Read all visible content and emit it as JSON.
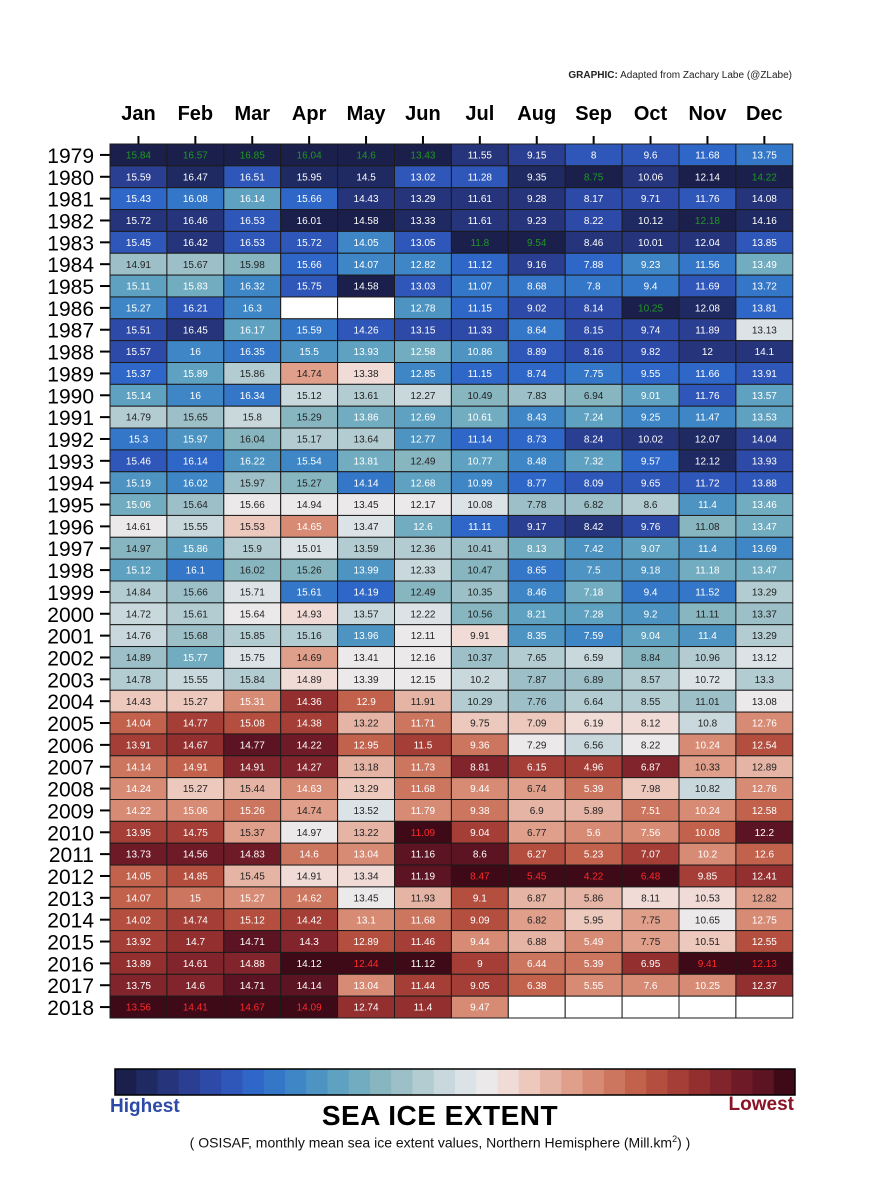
{
  "credit": {
    "bold": "GRAPHIC:",
    "text": "Adapted from Zachary Labe (@ZLabe)"
  },
  "chart_data": {
    "type": "heatmap",
    "title": "SEA ICE EXTENT",
    "subtitle": "( OSISAF, monthly mean sea ice extent values, Northern Hemisphere (Mill.km",
    "subtitle_sup": "2",
    "subtitle_end": ") )",
    "legend": {
      "high_label": "Highest",
      "low_label": "Lowest"
    },
    "months": [
      "Jan",
      "Feb",
      "Mar",
      "Apr",
      "May",
      "Jun",
      "Jul",
      "Aug",
      "Sep",
      "Oct",
      "Nov",
      "Dec"
    ],
    "years": [
      "1979",
      "1980",
      "1981",
      "1982",
      "1983",
      "1984",
      "1985",
      "1986",
      "1987",
      "1988",
      "1989",
      "1990",
      "1991",
      "1992",
      "1993",
      "1994",
      "1995",
      "1996",
      "1997",
      "1998",
      "1999",
      "2000",
      "2001",
      "2002",
      "2003",
      "2004",
      "2005",
      "2006",
      "2007",
      "2008",
      "2009",
      "2010",
      "2011",
      "2012",
      "2013",
      "2014",
      "2015",
      "2016",
      "2017",
      "2018"
    ],
    "values": [
      [
        15.84,
        16.57,
        16.85,
        16.04,
        14.6,
        13.43,
        11.55,
        9.15,
        8.0,
        9.6,
        11.68,
        13.75
      ],
      [
        15.59,
        16.47,
        16.51,
        15.95,
        14.5,
        13.02,
        11.28,
        9.35,
        8.75,
        10.06,
        12.14,
        14.22
      ],
      [
        15.43,
        16.08,
        16.14,
        15.66,
        14.43,
        13.29,
        11.61,
        9.28,
        8.17,
        9.71,
        11.76,
        14.08
      ],
      [
        15.72,
        16.46,
        16.53,
        16.01,
        14.58,
        13.33,
        11.61,
        9.23,
        8.22,
        10.12,
        12.18,
        14.16
      ],
      [
        15.45,
        16.42,
        16.53,
        15.72,
        14.05,
        13.05,
        11.8,
        9.54,
        8.46,
        10.01,
        12.04,
        13.85
      ],
      [
        14.91,
        15.67,
        15.98,
        15.66,
        14.07,
        12.82,
        11.12,
        9.16,
        7.88,
        9.23,
        11.56,
        13.49
      ],
      [
        15.11,
        15.83,
        16.32,
        15.75,
        14.58,
        13.03,
        11.07,
        8.68,
        7.8,
        9.4,
        11.69,
        13.72
      ],
      [
        15.27,
        16.21,
        16.3,
        null,
        null,
        12.78,
        11.15,
        9.02,
        8.14,
        10.25,
        12.08,
        13.81
      ],
      [
        15.51,
        16.45,
        16.17,
        15.59,
        14.26,
        13.15,
        11.33,
        8.64,
        8.15,
        9.74,
        11.89,
        13.13
      ],
      [
        15.57,
        16.0,
        16.35,
        15.5,
        13.93,
        12.58,
        10.86,
        8.89,
        8.16,
        9.82,
        12.0,
        14.1
      ],
      [
        15.37,
        15.89,
        15.86,
        14.74,
        13.38,
        12.85,
        11.15,
        8.74,
        7.75,
        9.55,
        11.66,
        13.91
      ],
      [
        15.14,
        16.0,
        16.34,
        15.12,
        13.61,
        12.27,
        10.49,
        7.83,
        6.94,
        9.01,
        11.76,
        13.57
      ],
      [
        14.79,
        15.65,
        15.8,
        15.29,
        13.86,
        12.69,
        10.61,
        8.43,
        7.24,
        9.25,
        11.47,
        13.53
      ],
      [
        15.3,
        15.97,
        16.04,
        15.17,
        13.64,
        12.77,
        11.14,
        8.73,
        8.24,
        10.02,
        12.07,
        14.04
      ],
      [
        15.46,
        16.14,
        16.22,
        15.54,
        13.81,
        12.49,
        10.77,
        8.48,
        7.32,
        9.57,
        12.12,
        13.93
      ],
      [
        15.19,
        16.02,
        15.97,
        15.27,
        14.14,
        12.68,
        10.99,
        8.77,
        8.09,
        9.65,
        11.72,
        13.88
      ],
      [
        15.06,
        15.64,
        15.66,
        14.94,
        13.45,
        12.17,
        10.08,
        7.78,
        6.82,
        8.6,
        11.4,
        13.46
      ],
      [
        14.61,
        15.55,
        15.53,
        14.65,
        13.47,
        12.6,
        11.11,
        9.17,
        8.42,
        9.76,
        11.08,
        13.47
      ],
      [
        14.97,
        15.86,
        15.9,
        15.01,
        13.59,
        12.36,
        10.41,
        8.13,
        7.42,
        9.07,
        11.4,
        13.69
      ],
      [
        15.12,
        16.1,
        16.02,
        15.26,
        13.99,
        12.33,
        10.47,
        8.65,
        7.5,
        9.18,
        11.18,
        13.47
      ],
      [
        14.84,
        15.66,
        15.71,
        15.61,
        14.19,
        12.49,
        10.35,
        8.46,
        7.18,
        9.4,
        11.52,
        13.29
      ],
      [
        14.72,
        15.61,
        15.64,
        14.93,
        13.57,
        12.22,
        10.56,
        8.21,
        7.28,
        9.2,
        11.11,
        13.37
      ],
      [
        14.76,
        15.68,
        15.85,
        15.16,
        13.96,
        12.11,
        9.91,
        8.35,
        7.59,
        9.04,
        11.4,
        13.29
      ],
      [
        14.89,
        15.77,
        15.75,
        14.69,
        13.41,
        12.16,
        10.37,
        7.65,
        6.59,
        8.84,
        10.96,
        13.12
      ],
      [
        14.78,
        15.55,
        15.84,
        14.89,
        13.39,
        12.15,
        10.2,
        7.87,
        6.89,
        8.57,
        10.72,
        13.3
      ],
      [
        14.43,
        15.27,
        15.31,
        14.36,
        12.9,
        11.91,
        10.29,
        7.76,
        6.64,
        8.55,
        11.01,
        13.08
      ],
      [
        14.04,
        14.77,
        15.08,
        14.38,
        13.22,
        11.71,
        9.75,
        7.09,
        6.19,
        8.12,
        10.8,
        12.76
      ],
      [
        13.91,
        14.67,
        14.77,
        14.22,
        12.95,
        11.5,
        9.36,
        7.29,
        6.56,
        8.22,
        10.24,
        12.54
      ],
      [
        14.14,
        14.91,
        14.91,
        14.27,
        13.18,
        11.73,
        8.81,
        6.15,
        4.96,
        6.87,
        10.33,
        12.89
      ],
      [
        14.24,
        15.27,
        15.44,
        14.63,
        13.29,
        11.68,
        9.44,
        6.74,
        5.39,
        7.98,
        10.82,
        12.76
      ],
      [
        14.22,
        15.06,
        15.26,
        14.74,
        13.52,
        11.79,
        9.38,
        6.9,
        5.89,
        7.51,
        10.24,
        12.58
      ],
      [
        13.95,
        14.75,
        15.37,
        14.97,
        13.22,
        11.09,
        9.04,
        6.77,
        5.6,
        7.56,
        10.08,
        12.2
      ],
      [
        13.73,
        14.56,
        14.83,
        14.6,
        13.04,
        11.16,
        8.6,
        6.27,
        5.23,
        7.07,
        10.2,
        12.6
      ],
      [
        14.05,
        14.85,
        15.45,
        14.91,
        13.34,
        11.19,
        8.47,
        5.45,
        4.22,
        6.48,
        9.85,
        12.41
      ],
      [
        14.07,
        15.0,
        15.27,
        14.62,
        13.45,
        11.93,
        9.1,
        6.87,
        5.86,
        8.11,
        10.53,
        12.82
      ],
      [
        14.02,
        14.74,
        15.12,
        14.42,
        13.1,
        11.68,
        9.09,
        6.82,
        5.95,
        7.75,
        10.65,
        12.75
      ],
      [
        13.92,
        14.7,
        14.71,
        14.3,
        12.89,
        11.46,
        9.44,
        6.88,
        5.49,
        7.75,
        10.51,
        12.55
      ],
      [
        13.89,
        14.61,
        14.88,
        14.12,
        12.44,
        11.12,
        9.0,
        6.44,
        5.39,
        6.95,
        9.41,
        12.13
      ],
      [
        13.75,
        14.6,
        14.71,
        14.14,
        13.04,
        11.44,
        9.05,
        6.38,
        5.55,
        7.6,
        10.25,
        12.37
      ],
      [
        13.56,
        14.41,
        14.67,
        14.09,
        12.74,
        11.4,
        9.47,
        null,
        null,
        null,
        null,
        null
      ]
    ],
    "colorscale": [
      "#1a1f4c",
      "#1f2a63",
      "#25347b",
      "#2b3f92",
      "#2e4aa8",
      "#2f57ba",
      "#2f67c8",
      "#3477c9",
      "#3e86c6",
      "#4d94c3",
      "#5fa1c1",
      "#72acc0",
      "#87b6c1",
      "#9dc0c8",
      "#b3ccd2",
      "#c8d8dd",
      "#dce3e6",
      "#ece9ea",
      "#f0dbd7",
      "#ecc8bd",
      "#e6b4a4",
      "#df9f8b",
      "#d78b74",
      "#cd765f",
      "#c2624d",
      "#b44f3f",
      "#a43e36",
      "#93302f",
      "#82242b",
      "#6f1a27",
      "#5c1322",
      "#3e0a17"
    ],
    "special_text": {
      "1979": {
        "0": "green",
        "1": "green",
        "2": "green",
        "3": "green",
        "4": "green",
        "5": "green"
      },
      "1980": {
        "8": "green",
        "11": "green"
      },
      "1982": {
        "10": "green"
      },
      "1983": {
        "6": "green",
        "7": "green"
      },
      "1986": {
        "9": "green"
      },
      "2010": {
        "5": "red"
      },
      "2012": {
        "6": "red",
        "7": "red",
        "8": "red",
        "9": "red"
      },
      "2016": {
        "4": "red",
        "10": "red",
        "11": "red"
      },
      "2018": {
        "0": "red",
        "1": "red",
        "2": "red",
        "3": "red"
      }
    },
    "text_colors": {
      "default": "#ffffff",
      "dark": "#222222",
      "green": "#1f9a1f",
      "red": "#ff2a2a"
    }
  }
}
